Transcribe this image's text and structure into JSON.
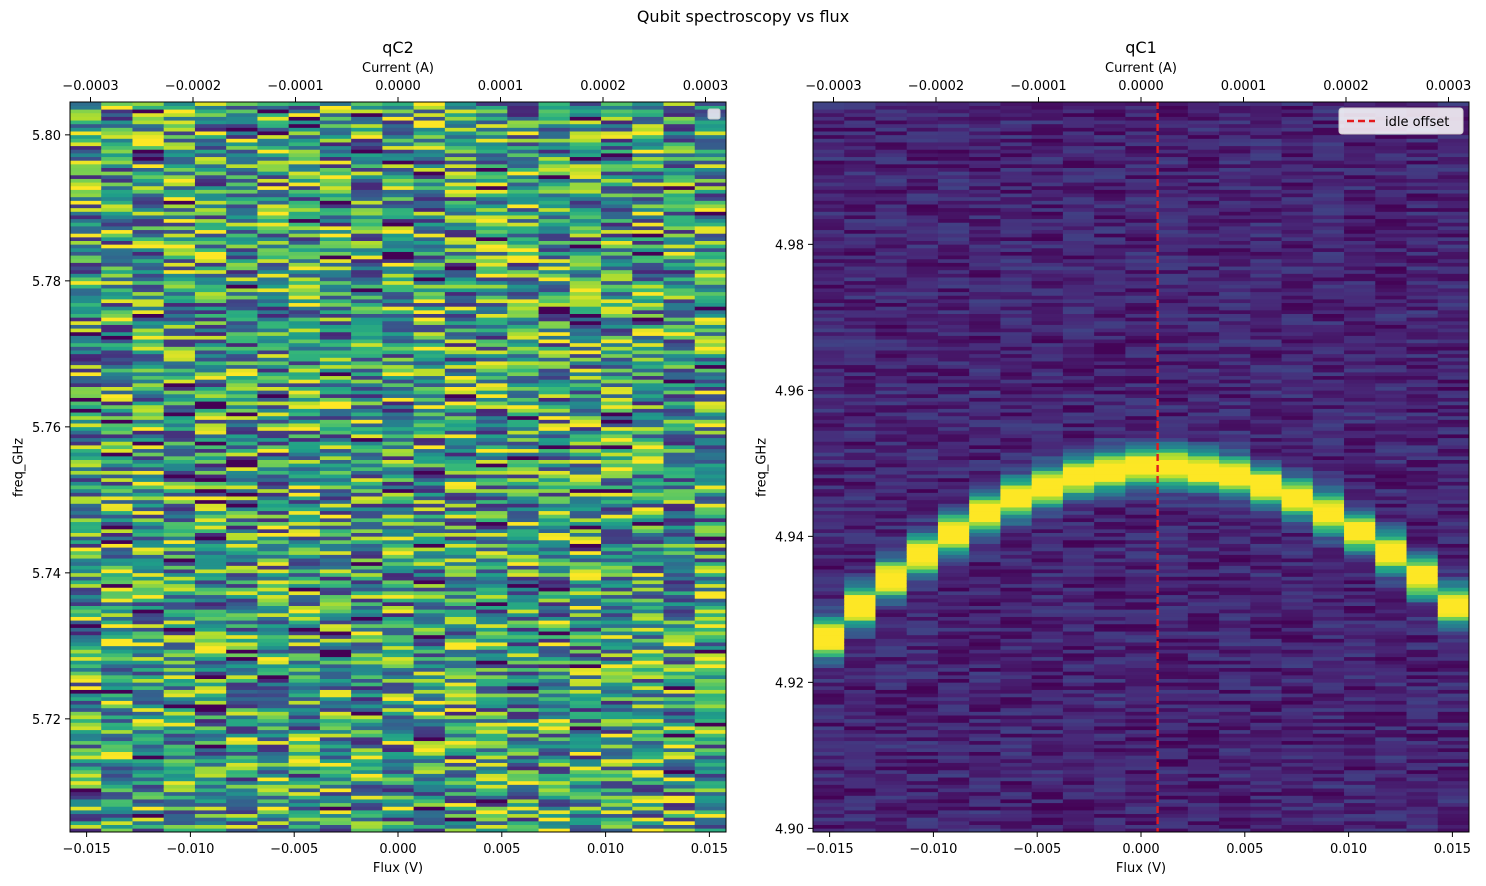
{
  "figure": {
    "title": "Qubit spectroscopy vs flux"
  },
  "chart_data": [
    {
      "type": "heatmap",
      "title": "qC2",
      "xlabel": "Flux (V)",
      "ylabel": "freq_GHz",
      "top_xlabel": "Current (A)",
      "xlim": [
        -0.0158,
        0.0158
      ],
      "ylim": [
        5.7045,
        5.8045
      ],
      "top_xlim": [
        -0.00032,
        0.00032
      ],
      "x_ticks": [
        "−0.015",
        "−0.010",
        "−0.005",
        "0.000",
        "0.005",
        "0.010",
        "0.015"
      ],
      "x_tick_values": [
        -0.015,
        -0.01,
        -0.005,
        0.0,
        0.005,
        0.01,
        0.015
      ],
      "y_ticks": [
        "5.72",
        "5.74",
        "5.76",
        "5.78",
        "5.80"
      ],
      "y_tick_values": [
        5.72,
        5.74,
        5.76,
        5.78,
        5.8
      ],
      "top_ticks": [
        "−0.0003",
        "−0.0002",
        "−0.0001",
        "0.0000",
        "0.0001",
        "0.0002",
        "0.0003"
      ],
      "top_tick_values": [
        -0.0003,
        -0.0002,
        -0.0001,
        0.0,
        0.0001,
        0.0002,
        0.0003
      ],
      "n_flux_columns": 21,
      "n_freq_rows": 200,
      "colormap": "viridis",
      "background_level": 0.55,
      "noise_level": 0.45,
      "resonance": null,
      "legend": {
        "visible": true,
        "placement": "upper right",
        "entries": []
      }
    },
    {
      "type": "heatmap",
      "title": "qC1",
      "xlabel": "Flux (V)",
      "ylabel": "freq_GHz",
      "top_xlabel": "Current (A)",
      "xlim": [
        -0.0158,
        0.0158
      ],
      "ylim": [
        4.8995,
        4.9995
      ],
      "top_xlim": [
        -0.00032,
        0.00032
      ],
      "x_ticks": [
        "−0.015",
        "−0.010",
        "−0.005",
        "0.000",
        "0.005",
        "0.010",
        "0.015"
      ],
      "x_tick_values": [
        -0.015,
        -0.01,
        -0.005,
        0.0,
        0.005,
        0.01,
        0.015
      ],
      "y_ticks": [
        "4.90",
        "4.92",
        "4.94",
        "4.96",
        "4.98"
      ],
      "y_tick_values": [
        4.9,
        4.92,
        4.94,
        4.96,
        4.98
      ],
      "top_ticks": [
        "−0.0003",
        "−0.0002",
        "−0.0001",
        "0.0000",
        "0.0001",
        "0.0002",
        "0.0003"
      ],
      "top_tick_values": [
        -0.0003,
        -0.0002,
        -0.0001,
        0.0,
        0.0001,
        0.0002,
        0.0003
      ],
      "n_flux_columns": 21,
      "n_freq_rows": 200,
      "colormap": "viridis",
      "background_level": 0.1,
      "noise_level": 0.2,
      "resonance": {
        "peak_flux_V": 0.0008,
        "peak_freq_GHz": 4.9495,
        "curvature_GHz_per_V2": 93,
        "width_GHz": 0.0018
      },
      "idle_offset_V": 0.0008,
      "legend": {
        "visible": true,
        "placement": "upper right",
        "entries": [
          {
            "label": "idle offset",
            "color": "#e41a1c",
            "style": "dashed"
          }
        ]
      }
    }
  ]
}
